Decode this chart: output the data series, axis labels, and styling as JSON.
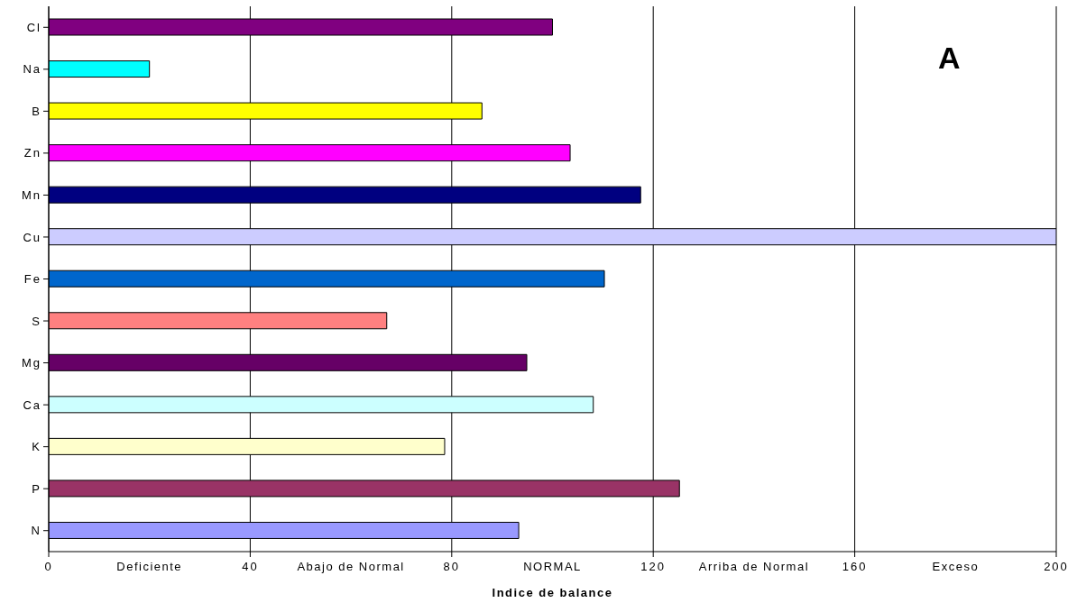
{
  "chart_data": {
    "type": "bar",
    "orientation": "horizontal",
    "xlabel": "Indice de balance",
    "categories": [
      "Cl",
      "Na",
      "B",
      "Zn",
      "Mn",
      "Cu",
      "Fe",
      "S",
      "Mg",
      "Ca",
      "K",
      "P",
      "N"
    ],
    "values": [
      100,
      20,
      86,
      103.5,
      117.5,
      200,
      110.3,
      67.1,
      94.9,
      108.1,
      78.6,
      125.2,
      93.3
    ],
    "colors": [
      "#800080",
      "#00ffff",
      "#ffff00",
      "#ff00ff",
      "#000080",
      "#ccccff",
      "#0066cc",
      "#ff8080",
      "#660066",
      "#ccffff",
      "#ffffcc",
      "#993366",
      "#9999ff"
    ],
    "xlim": [
      0,
      200
    ],
    "xticks": [
      0,
      40,
      80,
      120,
      160,
      200
    ],
    "grid": "x",
    "annotations": [
      "A",
      "Deficiente",
      "Abajo de Normal",
      "NORMAL",
      "Arriba de Normal",
      "Exceso"
    ]
  }
}
